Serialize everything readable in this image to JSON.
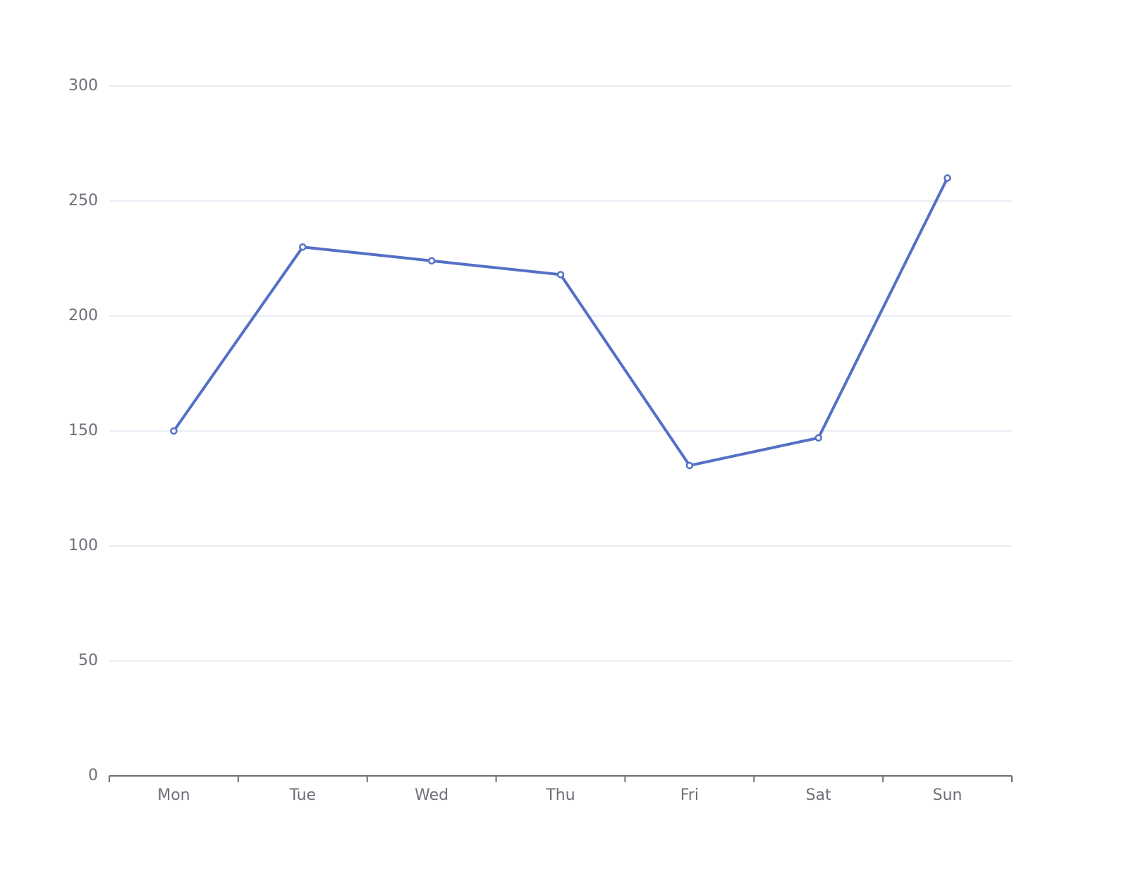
{
  "chart_data": {
    "type": "line",
    "categories": [
      "Mon",
      "Tue",
      "Wed",
      "Thu",
      "Fri",
      "Sat",
      "Sun"
    ],
    "series": [
      {
        "color": "#5470c6",
        "values": [
          150,
          230,
          224,
          218,
          135,
          147,
          260
        ]
      }
    ],
    "ylim": [
      0,
      300
    ],
    "yticks": [
      0,
      50,
      100,
      150,
      200,
      250,
      300
    ],
    "grid": true
  }
}
